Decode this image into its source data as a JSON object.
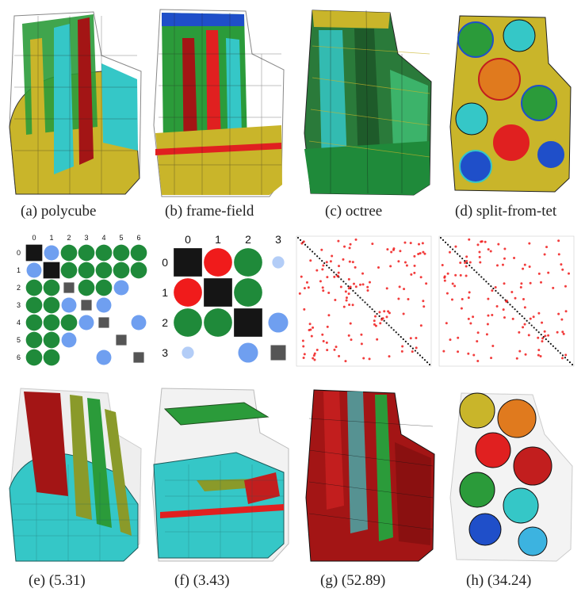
{
  "captions_top": [
    "(a)  polycube",
    "(b)  frame-field",
    "(c)  octree",
    "(d)  split-from-tet"
  ],
  "captions_bottom": [
    "(e)  (5.31)",
    "(f)  (3.43)",
    "(g)  (52.89)",
    "(h)  (34.24)"
  ],
  "matrix_e": {
    "labels": [
      "0",
      "1",
      "2",
      "3",
      "4",
      "5",
      "6"
    ],
    "cells": [
      [
        "sq-black",
        "circ-blue",
        "circ-green",
        "circ-green",
        "circ-green",
        "circ-green",
        "circ-green"
      ],
      [
        "circ-blue",
        "sq-black",
        "circ-green",
        "circ-green",
        "circ-green",
        "circ-green",
        "circ-green"
      ],
      [
        "circ-green",
        "circ-green",
        "sq-gray",
        "circ-green",
        "circ-green",
        "circ-blue",
        ""
      ],
      [
        "circ-green",
        "circ-green",
        "circ-blue",
        "sq-gray",
        "circ-blue",
        "",
        ""
      ],
      [
        "circ-green",
        "circ-green",
        "circ-green",
        "circ-blue",
        "sq-gray",
        "",
        "circ-blue"
      ],
      [
        "circ-green",
        "circ-green",
        "circ-blue",
        "",
        "",
        "sq-gray",
        ""
      ],
      [
        "circ-green",
        "circ-green",
        "",
        "",
        "circ-blue",
        "",
        "sq-gray"
      ]
    ]
  },
  "matrix_f": {
    "labels": [
      "0",
      "1",
      "2",
      "3"
    ],
    "cells": [
      [
        "sq-black",
        "circ-red",
        "circ-green",
        "circ-lightblue-s"
      ],
      [
        "circ-red",
        "sq-black",
        "circ-green",
        ""
      ],
      [
        "circ-green",
        "circ-green",
        "sq-black",
        "circ-lightblue"
      ],
      [
        "circ-lightblue-s",
        "",
        "circ-lightblue",
        "sq-gray-s"
      ]
    ]
  },
  "colors": {
    "green": "#1f8a3a",
    "blue": "#6f9ff0",
    "lightblue": "#b3cdf7",
    "red": "#f01b1b",
    "black": "#151515",
    "gray": "#555555",
    "teal": "#35c7c7",
    "olive": "#c9b52a",
    "darkred": "#a31515"
  }
}
